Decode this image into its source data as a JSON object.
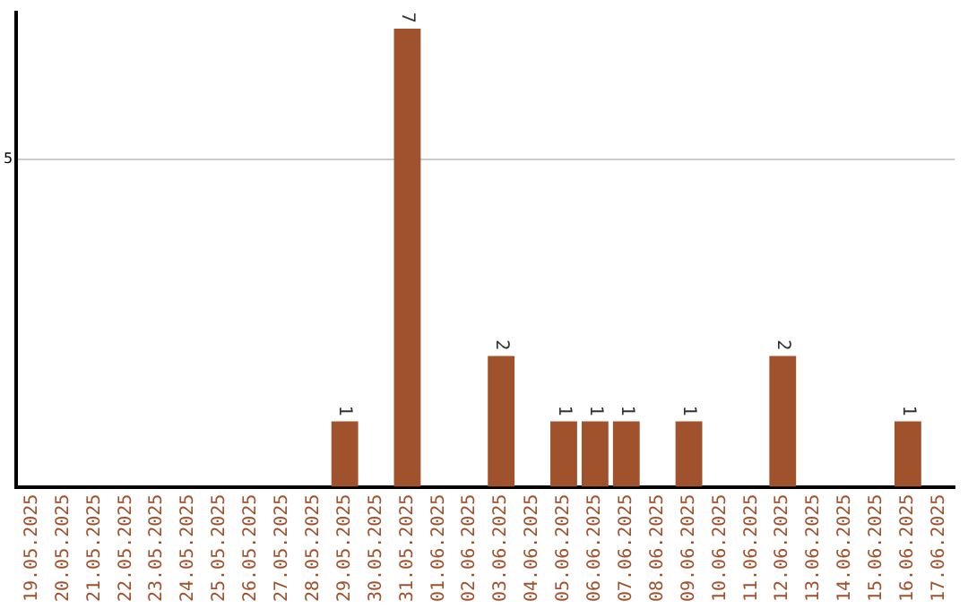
{
  "chart_data": {
    "type": "bar",
    "categories": [
      "19.05.2025",
      "20.05.2025",
      "21.05.2025",
      "22.05.2025",
      "23.05.2025",
      "24.05.2025",
      "25.05.2025",
      "26.05.2025",
      "27.05.2025",
      "28.05.2025",
      "29.05.2025",
      "30.05.2025",
      "31.05.2025",
      "01.06.2025",
      "02.06.2025",
      "03.06.2025",
      "04.06.2025",
      "05.06.2025",
      "06.06.2025",
      "07.06.2025",
      "08.06.2025",
      "09.06.2025",
      "10.06.2025",
      "11.06.2025",
      "12.06.2025",
      "13.06.2025",
      "14.06.2025",
      "15.06.2025",
      "16.06.2025",
      "17.06.2025"
    ],
    "values": [
      0,
      0,
      0,
      0,
      0,
      0,
      0,
      0,
      0,
      0,
      1,
      0,
      7,
      0,
      0,
      2,
      0,
      1,
      1,
      1,
      0,
      1,
      0,
      0,
      2,
      0,
      0,
      0,
      1,
      0
    ],
    "value_labels": [
      null,
      null,
      null,
      null,
      null,
      null,
      null,
      null,
      null,
      null,
      "1",
      null,
      "7",
      null,
      null,
      "2",
      null,
      "1",
      "1",
      "1",
      null,
      "1",
      null,
      null,
      "2",
      null,
      null,
      null,
      "1",
      null
    ],
    "color": "#a0522d",
    "ylim": [
      0,
      7.25
    ],
    "yticks": [
      5
    ],
    "grid": "y",
    "legend": false
  }
}
